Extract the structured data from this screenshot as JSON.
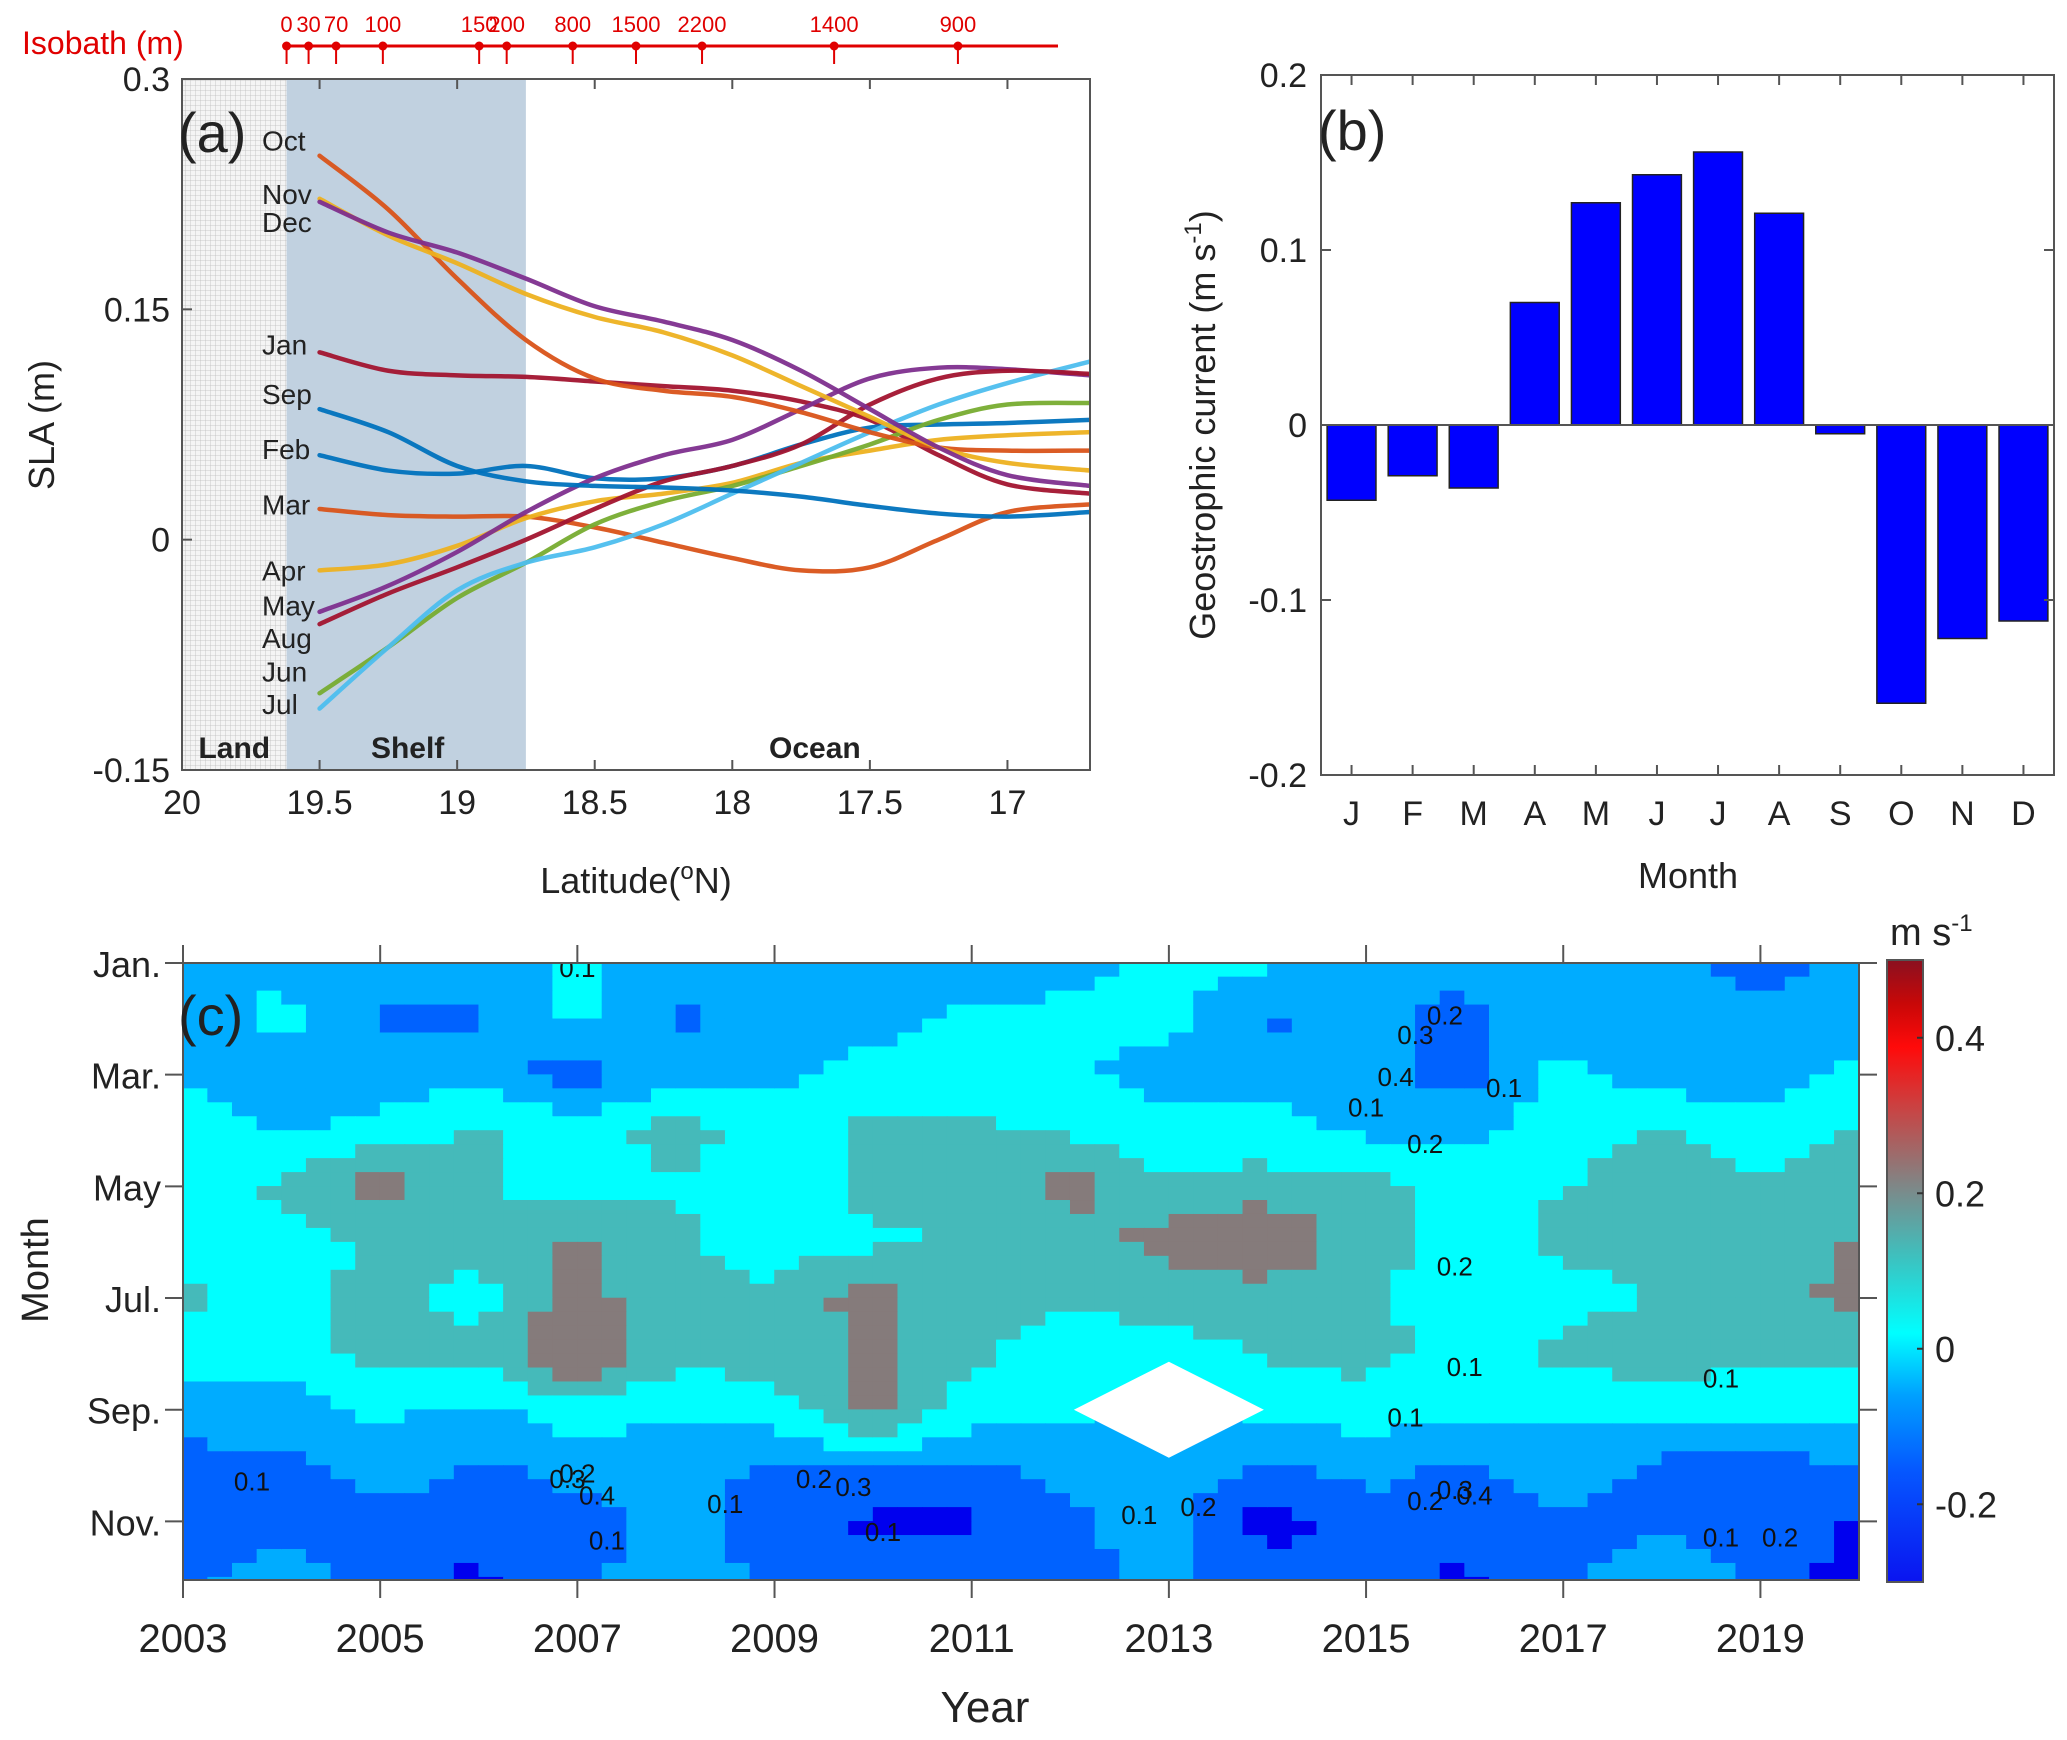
{
  "chart_data": [
    {
      "panel": "(a)",
      "type": "line",
      "title": "",
      "xlabel": "Latitude(°N)",
      "ylabel": "SLA (m)",
      "xlim": [
        20,
        16.7
      ],
      "ylim": [
        -0.15,
        0.3
      ],
      "xticks": [
        "20",
        "19.5",
        "19",
        "18.5",
        "18",
        "17.5",
        "17"
      ],
      "xtick_values": [
        20,
        19.5,
        19,
        18.5,
        18,
        17.5,
        17
      ],
      "yticks": [
        "-0.15",
        "0",
        "0.15",
        "0.3"
      ],
      "ytick_values": [
        -0.15,
        0,
        0.15,
        0.3
      ],
      "regions": [
        {
          "label": "Land",
          "from": 20,
          "to": 19.62,
          "color": "#d9d9d9"
        },
        {
          "label": "Shelf",
          "from": 19.62,
          "to": 18.75,
          "color": "#c1d1e0"
        },
        {
          "label": "Ocean",
          "from": 18.75,
          "to": 16.7,
          "color": "#ffffff"
        }
      ],
      "isobath": {
        "label": "Isobath (m)",
        "color": "#e00000",
        "lat": [
          19.62,
          19.54,
          19.44,
          19.27,
          18.92,
          18.82,
          18.58,
          18.35,
          18.11,
          17.63,
          17.18
        ],
        "depths": [
          "0",
          "30",
          "70",
          "100",
          "150",
          "200",
          "800",
          "1500",
          "2200",
          "1400",
          "900"
        ]
      },
      "x": [
        19.5,
        19.25,
        19.0,
        18.75,
        18.5,
        18.25,
        18.0,
        17.75,
        17.5,
        17.25,
        17.0,
        16.7
      ],
      "series": [
        {
          "name": "Jan",
          "color": "#a2142f",
          "values": [
            0.122,
            0.11,
            0.107,
            0.106,
            0.103,
            0.1,
            0.097,
            0.09,
            0.078,
            0.055,
            0.036,
            0.03
          ]
        },
        {
          "name": "Feb",
          "color": "#0072bd",
          "values": [
            0.055,
            0.045,
            0.043,
            0.048,
            0.04,
            0.04,
            0.048,
            0.062,
            0.073,
            0.075,
            0.076,
            0.078
          ]
        },
        {
          "name": "Mar",
          "color": "#d95319",
          "values": [
            0.02,
            0.016,
            0.015,
            0.015,
            0.008,
            -0.002,
            -0.012,
            -0.02,
            -0.018,
            0.0,
            0.018,
            0.023
          ]
        },
        {
          "name": "Apr",
          "color": "#edb120",
          "values": [
            -0.02,
            -0.016,
            -0.004,
            0.014,
            0.025,
            0.03,
            0.037,
            0.05,
            0.058,
            0.065,
            0.068,
            0.07
          ]
        },
        {
          "name": "May",
          "color": "#7e2f8e",
          "values": [
            -0.047,
            -0.03,
            -0.008,
            0.018,
            0.04,
            0.055,
            0.065,
            0.085,
            0.105,
            0.112,
            0.111,
            0.107
          ]
        },
        {
          "name": "Jun",
          "color": "#77ac30",
          "values": [
            -0.1,
            -0.07,
            -0.038,
            -0.015,
            0.01,
            0.025,
            0.035,
            0.048,
            0.062,
            0.078,
            0.088,
            0.089
          ]
        },
        {
          "name": "Jul",
          "color": "#4dbeee",
          "values": [
            -0.11,
            -0.07,
            -0.033,
            -0.015,
            -0.005,
            0.01,
            0.03,
            0.05,
            0.07,
            0.088,
            0.102,
            0.116
          ]
        },
        {
          "name": "Aug",
          "color": "#a2142f",
          "values": [
            -0.055,
            -0.035,
            -0.018,
            0.0,
            0.02,
            0.038,
            0.048,
            0.062,
            0.088,
            0.105,
            0.11,
            0.108
          ]
        },
        {
          "name": "Sep",
          "color": "#0072bd",
          "values": [
            0.085,
            0.07,
            0.048,
            0.038,
            0.035,
            0.034,
            0.032,
            0.028,
            0.022,
            0.017,
            0.015,
            0.018
          ]
        },
        {
          "name": "Oct",
          "color": "#d95319",
          "values": [
            0.25,
            0.215,
            0.17,
            0.13,
            0.105,
            0.097,
            0.093,
            0.083,
            0.07,
            0.06,
            0.058,
            0.058
          ]
        },
        {
          "name": "Nov",
          "color": "#edb120",
          "values": [
            0.222,
            0.198,
            0.18,
            0.16,
            0.145,
            0.135,
            0.12,
            0.1,
            0.08,
            0.06,
            0.05,
            0.045
          ]
        },
        {
          "name": "Dec",
          "color": "#7e2f8e",
          "values": [
            0.22,
            0.2,
            0.187,
            0.17,
            0.152,
            0.142,
            0.13,
            0.11,
            0.085,
            0.06,
            0.042,
            0.035
          ]
        }
      ],
      "label_order": [
        "Oct",
        "Nov",
        "Dec",
        "Jan",
        "Sep",
        "Feb",
        "Mar",
        "Apr",
        "May",
        "Aug",
        "Jun",
        "Jul"
      ],
      "label_values": [
        0.26,
        0.225,
        0.207,
        0.127,
        0.095,
        0.059,
        0.023,
        -0.02,
        -0.043,
        -0.064,
        -0.086,
        -0.107
      ],
      "region_labels": [
        "Land",
        "Shelf",
        "Ocean"
      ]
    },
    {
      "panel": "(b)",
      "type": "bar",
      "title": "",
      "xlabel": "Month",
      "ylabel": "Geostrophic current (m s-1)",
      "ylim": [
        -0.2,
        0.2
      ],
      "yticks": [
        "-0.2",
        "-0.1",
        "0",
        "0.1",
        "0.2"
      ],
      "ytick_values": [
        -0.2,
        -0.1,
        0,
        0.1,
        0.2
      ],
      "categories": [
        "J",
        "F",
        "M",
        "A",
        "M",
        "J",
        "J",
        "A",
        "S",
        "O",
        "N",
        "D"
      ],
      "values": [
        -0.043,
        -0.029,
        -0.036,
        0.07,
        0.127,
        0.143,
        0.156,
        0.121,
        -0.005,
        -0.159,
        -0.122,
        -0.112
      ],
      "bar_color": "#0000ff"
    },
    {
      "panel": "(c)",
      "type": "heatmap",
      "title": "",
      "xlabel": "Year",
      "ylabel": "Month",
      "xlim": [
        2003,
        2020
      ],
      "xticks": [
        "2003",
        "2005",
        "2007",
        "2009",
        "2011",
        "2013",
        "2015",
        "2017",
        "2019"
      ],
      "xtick_values": [
        2003,
        2005,
        2007,
        2009,
        2011,
        2013,
        2015,
        2017,
        2019
      ],
      "yticks": [
        "Jan.",
        "Mar.",
        "May",
        "Jul.",
        "Sep.",
        "Nov."
      ],
      "ytick_values": [
        1,
        3,
        5,
        7,
        9,
        11
      ],
      "ylim": [
        1,
        12
      ],
      "colorbar": {
        "label": "m s-1",
        "range": [
          -0.3,
          0.5
        ],
        "ticks": [
          "-0.2",
          "0",
          "0.2",
          "0.4"
        ],
        "tick_values": [
          -0.2,
          0,
          0.2,
          0.4
        ]
      },
      "levels": [
        -0.2,
        -0.1,
        0,
        0.1,
        0.2,
        0.3
      ],
      "level_colors": [
        "#0000ee",
        "#0062ff",
        "#00acff",
        "#00ffff",
        "#45baba",
        "#857b7b",
        "#c83c3c"
      ],
      "years": [
        2003,
        2004,
        2005,
        2006,
        2007,
        2008,
        2009,
        2010,
        2011,
        2012,
        2013,
        2014,
        2015,
        2016,
        2017,
        2018,
        2019,
        2020
      ],
      "values": [
        [
          -0.05,
          -0.02,
          -0.05,
          -0.05,
          0.02,
          -0.05,
          -0.02,
          -0.05,
          -0.04,
          -0.03,
          0.02,
          0.02,
          -0.05,
          -0.08,
          -0.06,
          -0.08,
          -0.15,
          -0.05
        ],
        [
          -0.04,
          0.03,
          -0.12,
          -0.12,
          0.03,
          -0.12,
          -0.05,
          -0.04,
          0.02,
          0.02,
          0.03,
          -0.12,
          -0.08,
          -0.12,
          -0.03,
          -0.06,
          -0.04,
          -0.06
        ],
        [
          -0.05,
          -0.06,
          -0.05,
          -0.05,
          -0.15,
          -0.04,
          -0.03,
          0.05,
          0.05,
          0.02,
          -0.05,
          -0.03,
          -0.05,
          -0.15,
          0.03,
          -0.06,
          -0.05,
          0.02
        ],
        [
          0.12,
          -0.02,
          0.03,
          0.12,
          0.05,
          0.14,
          0.05,
          0.13,
          0.12,
          0.08,
          0.03,
          0.04,
          -0.02,
          -0.02,
          0.05,
          0.12,
          0.05,
          0.1
        ],
        [
          0.05,
          0.12,
          0.25,
          0.12,
          0.03,
          0.1,
          0.02,
          0.14,
          0.1,
          0.25,
          0.12,
          0.14,
          0.13,
          0.05,
          0.1,
          0.14,
          0.12,
          0.15
        ],
        [
          0.05,
          0.03,
          0.12,
          0.14,
          0.22,
          0.12,
          0.05,
          0.08,
          0.12,
          0.14,
          0.25,
          0.32,
          0.14,
          0.05,
          0.13,
          0.14,
          0.1,
          0.22
        ],
        [
          0.13,
          0.05,
          0.15,
          0.05,
          0.25,
          0.12,
          0.12,
          0.25,
          0.12,
          0.12,
          0.14,
          0.14,
          0.12,
          0.05,
          0.05,
          0.12,
          0.13,
          0.25
        ],
        [
          0.03,
          0.05,
          0.15,
          0.12,
          0.33,
          0.12,
          0.15,
          0.22,
          0.12,
          0.05,
          0.05,
          0.12,
          0.14,
          0.05,
          0.14,
          0.14,
          0.12,
          0.14
        ],
        [
          -0.02,
          -0.05,
          0.02,
          -0.02,
          0.05,
          0.02,
          0.05,
          0.25,
          0.05,
          0.02,
          -0.05,
          0.03,
          0.05,
          0.02,
          0.02,
          0.05,
          0.05,
          0.03
        ],
        [
          -0.15,
          -0.12,
          -0.05,
          -0.12,
          -0.06,
          -0.05,
          -0.12,
          -0.08,
          -0.12,
          -0.05,
          -0.03,
          -0.12,
          -0.06,
          -0.12,
          -0.05,
          -0.12,
          -0.15,
          -0.1
        ],
        [
          -0.15,
          -0.15,
          -0.15,
          -0.12,
          -0.15,
          -0.05,
          -0.15,
          -0.22,
          -0.22,
          -0.12,
          -0.05,
          -0.25,
          -0.15,
          -0.15,
          -0.12,
          -0.12,
          -0.15,
          -0.22
        ],
        [
          -0.12,
          -0.05,
          -0.15,
          -0.22,
          -0.12,
          -0.05,
          -0.12,
          -0.15,
          -0.15,
          -0.12,
          -0.08,
          -0.15,
          -0.12,
          -0.22,
          -0.12,
          -0.05,
          -0.12,
          -0.25
        ]
      ],
      "missing": {
        "year": 2013,
        "month": 9
      },
      "contour_labels": [
        {
          "text": "0.1",
          "year": 2007.0,
          "month": 1.25
        },
        {
          "text": "0.1",
          "year": 2003.7,
          "month": 10.45
        },
        {
          "text": "0.3",
          "year": 2006.9,
          "month": 10.4
        },
        {
          "text": "0.2",
          "year": 2007.0,
          "month": 10.3
        },
        {
          "text": "0.4",
          "year": 2007.2,
          "month": 10.7
        },
        {
          "text": "0.1",
          "year": 2007.3,
          "month": 11.5
        },
        {
          "text": "0.1",
          "year": 2008.5,
          "month": 10.85
        },
        {
          "text": "0.2",
          "year": 2009.4,
          "month": 10.4
        },
        {
          "text": "0.3",
          "year": 2009.8,
          "month": 10.55
        },
        {
          "text": "0.1",
          "year": 2010.1,
          "month": 11.35
        },
        {
          "text": "0.3",
          "year": 2015.5,
          "month": 2.45
        },
        {
          "text": "0.2",
          "year": 2015.8,
          "month": 2.1
        },
        {
          "text": "0.4",
          "year": 2015.3,
          "month": 3.2
        },
        {
          "text": "0.1",
          "year": 2016.4,
          "month": 3.4
        },
        {
          "text": "0.1",
          "year": 2015.0,
          "month": 3.75
        },
        {
          "text": "0.2",
          "year": 2015.6,
          "month": 4.4
        },
        {
          "text": "0.2",
          "year": 2015.9,
          "month": 6.6
        },
        {
          "text": "0.1",
          "year": 2016.0,
          "month": 8.4
        },
        {
          "text": "0.1",
          "year": 2015.4,
          "month": 9.3
        },
        {
          "text": "0.2",
          "year": 2015.6,
          "month": 10.8
        },
        {
          "text": "0.3",
          "year": 2015.9,
          "month": 10.6
        },
        {
          "text": "0.4",
          "year": 2016.1,
          "month": 10.7
        },
        {
          "text": "0.1",
          "year": 2012.7,
          "month": 11.05
        },
        {
          "text": "0.2",
          "year": 2013.3,
          "month": 10.9
        },
        {
          "text": "0.1",
          "year": 2018.6,
          "month": 8.6
        },
        {
          "text": "0.1",
          "year": 2018.6,
          "month": 11.45
        },
        {
          "text": "0.2",
          "year": 2019.2,
          "month": 11.45
        }
      ]
    }
  ],
  "labels": {
    "panel_a": "(a)",
    "panel_b": "(b)",
    "panel_c": "(c)",
    "isobath_title": "Isobath (m)",
    "a_ylabel": "SLA (m)",
    "a_xlabel_pre": "Latitude(",
    "a_xlabel_sup": "o",
    "a_xlabel_post": "N)",
    "b_ylabel_pre": "Geostrophic current (m s",
    "b_ylabel_sup": "-1",
    "b_ylabel_post": ")",
    "b_xlabel": "Month",
    "c_xlabel": "Year",
    "c_ylabel": "Month",
    "cbar_unit_pre": "m s",
    "cbar_unit_sup": "-1"
  }
}
